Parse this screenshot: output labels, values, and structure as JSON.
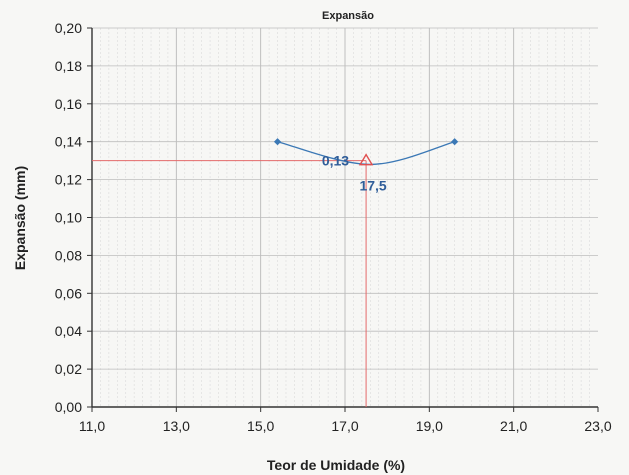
{
  "chart_data": {
    "type": "scatter",
    "title": "Expansão",
    "xlabel": "Teor de Umidade (%)",
    "ylabel": "Expansão (mm)",
    "xlim": [
      11.0,
      23.0
    ],
    "ylim": [
      0.0,
      0.2
    ],
    "x_ticks": [
      "11,0",
      "13,0",
      "15,0",
      "17,0",
      "19,0",
      "21,0",
      "23,0"
    ],
    "y_ticks": [
      "0,00",
      "0,02",
      "0,04",
      "0,06",
      "0,08",
      "0,10",
      "0,12",
      "0,14",
      "0,16",
      "0,18",
      "0,20"
    ],
    "grid": true,
    "series": [
      {
        "type": "line",
        "color": "#3b78b5",
        "marker": "diamond",
        "points": [
          {
            "x": 15.4,
            "y": 0.14
          },
          {
            "x": 17.6,
            "y": 0.128
          },
          {
            "x": 19.6,
            "y": 0.14
          }
        ]
      }
    ],
    "optimum": {
      "x": 17.5,
      "y": 0.13,
      "marker": "triangle",
      "color": "#e05050",
      "x_label": "17,5",
      "y_label": "0,13"
    }
  }
}
